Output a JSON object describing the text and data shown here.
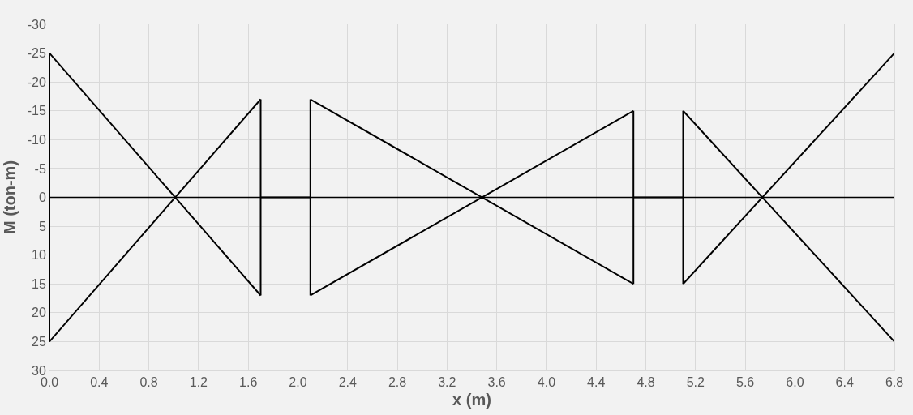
{
  "chart_data": {
    "type": "line",
    "xlabel": "x (m)",
    "ylabel": "M (ton-m)",
    "series": [
      {
        "color": "#000000",
        "x": [
          0,
          0
        ],
        "values": [
          -25,
          25
        ]
      },
      {
        "color": "#000000",
        "x": [
          0,
          1.7
        ],
        "values": [
          -25,
          17
        ]
      },
      {
        "color": "#000000",
        "x": [
          0,
          1.7
        ],
        "values": [
          25,
          -17
        ]
      },
      {
        "color": "#000000",
        "x": [
          1.7,
          1.7
        ],
        "values": [
          -17,
          17
        ]
      },
      {
        "color": "#000000",
        "x": [
          1.7,
          2.1
        ],
        "values": [
          0,
          0
        ]
      },
      {
        "color": "#000000",
        "x": [
          2.1,
          2.1
        ],
        "values": [
          -17,
          17
        ]
      },
      {
        "color": "#000000",
        "x": [
          2.1,
          4.7
        ],
        "values": [
          -17,
          15
        ]
      },
      {
        "color": "#000000",
        "x": [
          2.1,
          4.7
        ],
        "values": [
          17,
          -15
        ]
      },
      {
        "color": "#000000",
        "x": [
          4.7,
          4.7
        ],
        "values": [
          -15,
          15
        ]
      },
      {
        "color": "#000000",
        "x": [
          4.7,
          5.1
        ],
        "values": [
          0,
          0
        ]
      },
      {
        "color": "#000000",
        "x": [
          5.1,
          5.1
        ],
        "values": [
          -15,
          15
        ]
      },
      {
        "color": "#000000",
        "x": [
          5.1,
          6.8
        ],
        "values": [
          -15,
          25
        ]
      },
      {
        "color": "#000000",
        "x": [
          5.1,
          6.8
        ],
        "values": [
          15,
          -25
        ]
      },
      {
        "color": "#000000",
        "x": [
          6.8,
          6.8
        ],
        "values": [
          -25,
          25
        ]
      }
    ],
    "ref_lines": [
      {
        "axis": "y",
        "value": 0,
        "color": "#000000"
      }
    ],
    "xlim": [
      0,
      6.8
    ],
    "xticks": [
      {
        "value": 0,
        "label": "0.0"
      },
      0.4,
      0.8,
      1.2,
      1.6,
      {
        "value": 2,
        "label": "2.0"
      },
      2.4,
      2.8,
      3.2,
      3.6,
      {
        "value": 4,
        "label": "4.0"
      },
      4.4,
      4.8,
      5.2,
      5.6,
      {
        "value": 6,
        "label": "6.0"
      },
      6.4,
      6.8
    ],
    "ylim": [
      30,
      -30
    ],
    "yticks": [
      -30,
      -25,
      -20,
      -15,
      -10,
      -5,
      0,
      5,
      10,
      15,
      20,
      25,
      30
    ],
    "grid": true,
    "marker": "none",
    "line_style": "solid"
  }
}
